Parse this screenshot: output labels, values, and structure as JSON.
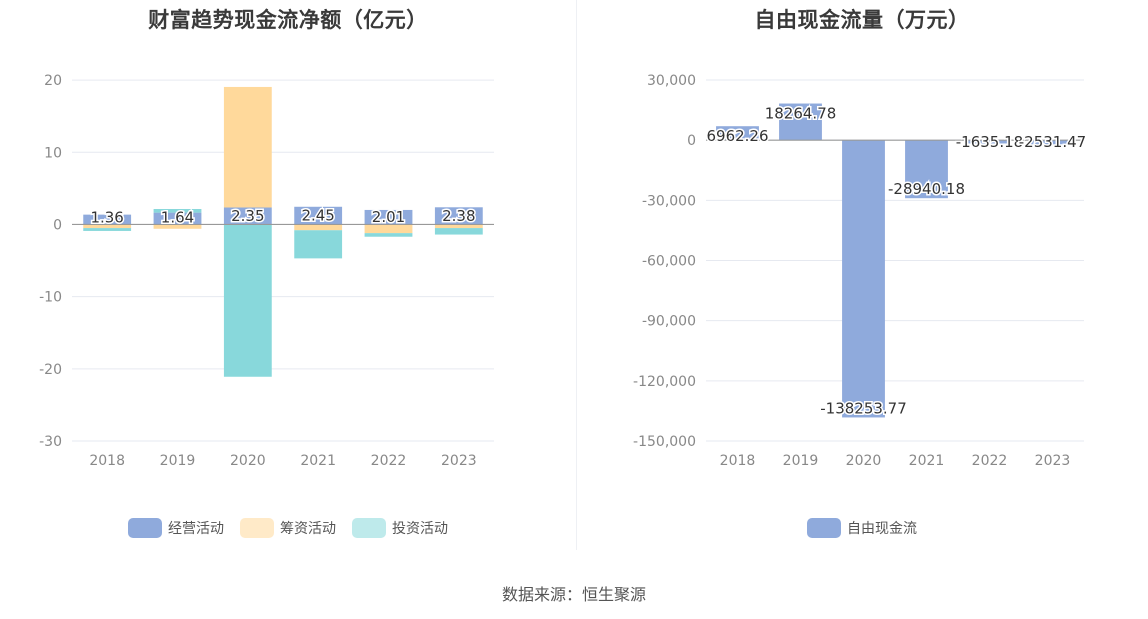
{
  "chart_data": [
    {
      "type": "bar",
      "title": "财富趋势现金流净额（亿元）",
      "categories": [
        "2018",
        "2019",
        "2020",
        "2021",
        "2022",
        "2023"
      ],
      "y_ticks": [
        "20",
        "10",
        "0",
        "-10",
        "-20",
        "-30"
      ],
      "ylim": [
        -30,
        25
      ],
      "series": [
        {
          "name": "经营活动",
          "color": "#8faadc",
          "values": [
            1.36,
            1.64,
            2.35,
            2.45,
            2.01,
            2.38
          ]
        },
        {
          "name": "筹资活动",
          "color": "#ffd99b",
          "values": [
            -0.5,
            -0.6,
            16.7,
            -0.8,
            -1.2,
            -0.5
          ]
        },
        {
          "name": "投资活动",
          "color": "#88d8db",
          "values": [
            -0.4,
            0.5,
            -21.1,
            -3.9,
            -0.5,
            -0.9
          ]
        }
      ],
      "data_labels": [
        "1.36",
        "1.64",
        "2.35",
        "2.45",
        "2.01",
        "2.38"
      ],
      "legend_position": "bottom",
      "grid": true
    },
    {
      "type": "bar",
      "title": "自由现金流量（万元）",
      "categories": [
        "2018",
        "2019",
        "2020",
        "2021",
        "2022",
        "2023"
      ],
      "y_ticks": [
        "30,000",
        "0",
        "-30,000",
        "-60,000",
        "-90,000",
        "-120,000",
        "-150,000"
      ],
      "ylim": [
        -150000,
        30000
      ],
      "series": [
        {
          "name": "自由现金流",
          "color": "#8faadc",
          "values": [
            6962.26,
            18264.78,
            -138253.77,
            -28940.18,
            -1635.18,
            -2531.47
          ]
        }
      ],
      "data_labels": [
        "6962.26",
        "18264.78",
        "-138253.77",
        "-28940.18",
        "-1635.18",
        "-2531.47"
      ],
      "legend_position": "bottom",
      "grid": true
    }
  ],
  "source": "数据来源：恒生聚源"
}
